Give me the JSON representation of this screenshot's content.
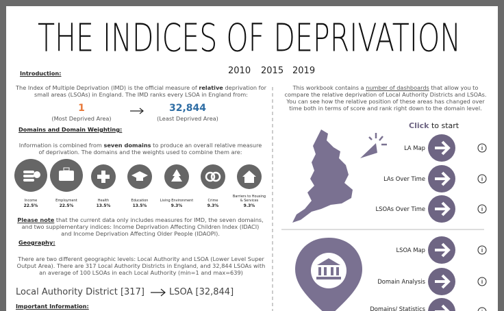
{
  "header": {
    "title": "THE INDICES OF DEPRIVATION",
    "years": [
      "2010",
      "2015",
      "2019"
    ]
  },
  "introduction": {
    "heading": "Introduction:",
    "text": [
      "The Index of Multiple Deprivation (IMD) is the official measure of ",
      "relative",
      " deprivation for small areas (LSOAs) in England. The IMD ranks every LSOA in England from:"
    ],
    "min_rank": "1",
    "min_label": "(Most Deprived Area)",
    "max_rank": "32,844",
    "max_label": "(Least Deprived Area)"
  },
  "domains": {
    "heading": "Domains and Domain Weighting:",
    "text": [
      "Information is combined from ",
      "seven domains",
      " to produce an overall relative measure of deprivation. The domains and the weights used to combine them are:"
    ],
    "items": [
      {
        "name": "Income",
        "weight": "22.5%"
      },
      {
        "name": "Employment",
        "weight": "22.5%"
      },
      {
        "name": "Health",
        "weight": "13.5%"
      },
      {
        "name": "Education",
        "weight": "13.5%"
      },
      {
        "name": "Living Environment",
        "weight": "9.3%"
      },
      {
        "name": "Crime",
        "weight": "9.3%"
      },
      {
        "name": "Barriers to Housing & Services",
        "weight": "9.3%"
      }
    ],
    "note": [
      "Please note",
      " that the current data only includes measures for IMD, the seven domains, and two supplementary indices: Income Deprivation Affecting Children Index (IDACI) and Income Deprivation Affecting Older People (IDAOPI)."
    ]
  },
  "geography": {
    "heading": "Geography:",
    "text": "There are two different geographic levels: Local Authority and LSOA (Lower Level Super Output Area). There are 317 Local Authority Districts in England, and 32,844 LSOAs with an average of 100 LSOAs in each Local Authority (min=1 and max=639)",
    "levels": [
      "Local Authority District [317]",
      "LSOA [32,844]"
    ]
  },
  "important": {
    "heading": "Important Information:"
  },
  "workbook": {
    "text": [
      "This workbook contains a ",
      "number of dashboards",
      " that allow you to compare the relative deprivation of Local Authority Districts and LSOAs. You can see how the relative position of these areas has changed over time both in terms of score and rank right down to the domain level."
    ],
    "click": "Click",
    "click_rest": " to start"
  },
  "navigation": {
    "geography_buttons": [
      "LA Map",
      "LAs Over Time",
      "LSOAs Over Time"
    ],
    "lsoa_buttons": [
      "LSOA Map",
      "Domain Analysis",
      "Domains/ Statistics"
    ]
  }
}
